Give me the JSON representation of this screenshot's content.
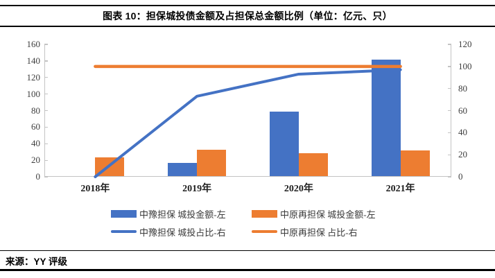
{
  "header": {
    "title": "图表 10：担保城投债金额及占担保总金额比例（单位：亿元、只）"
  },
  "footer": {
    "source": "来源：YY 评级"
  },
  "colors": {
    "blue": "#4472C4",
    "orange": "#ED7D31",
    "axis_line": "#C3C3C3",
    "rule": "#000000"
  },
  "chart_data": {
    "type": "bar",
    "subtype": "combo bar + line, dual axis",
    "categories": [
      "2018年",
      "2019年",
      "2020年",
      "2021年"
    ],
    "series": [
      {
        "name": "中豫担保 城投金额-左",
        "type": "bar",
        "axis": "left",
        "color": "#4472C4",
        "values": [
          0,
          16,
          78,
          141
        ]
      },
      {
        "name": "中原再担保 城投金额-左",
        "type": "bar",
        "axis": "left",
        "color": "#ED7D31",
        "values": [
          23,
          32,
          28,
          31
        ]
      },
      {
        "name": "中豫担保 城投占比-右",
        "type": "line",
        "axis": "right",
        "color": "#4472C4",
        "values": [
          0,
          73,
          93,
          97
        ]
      },
      {
        "name": "中原再担保 占比-右",
        "type": "line",
        "axis": "right",
        "color": "#ED7D31",
        "values": [
          100,
          100,
          100,
          100
        ]
      }
    ],
    "left_axis": {
      "ticks": [
        0,
        20,
        40,
        60,
        80,
        100,
        120,
        140,
        160
      ],
      "max": 160
    },
    "right_axis": {
      "ticks": [
        0,
        20,
        40,
        60,
        80,
        100,
        120
      ],
      "max": 120
    },
    "grid": false,
    "legend_position": "bottom"
  }
}
